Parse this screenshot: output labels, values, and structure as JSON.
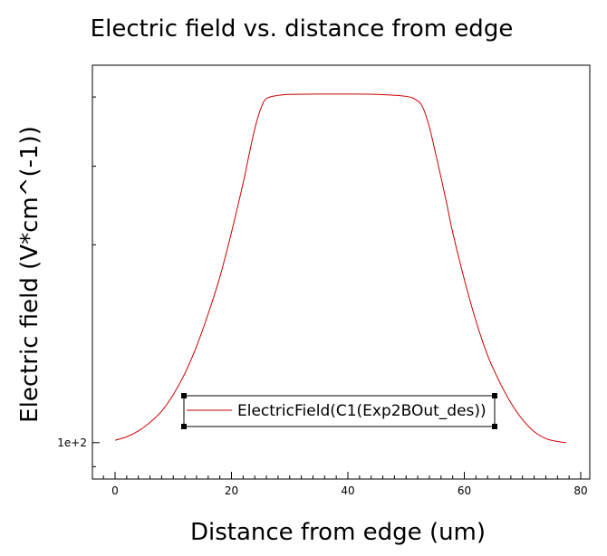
{
  "chart_data": {
    "type": "line",
    "title": "Electric field vs. distance from edge",
    "xlabel": "Distance from edge (um)",
    "ylabel": "Electric field (V*cm^(-1))",
    "xlim": [
      -3.5,
      81.5
    ],
    "x_ticks": [
      0,
      20,
      40,
      60,
      80
    ],
    "x_minor_step": 2,
    "yscale": "log",
    "ylim": [
      94,
      190
    ],
    "y_tick_labels": [
      {
        "value": 100,
        "label": "1e+2"
      }
    ],
    "y_minor_ticks": [
      96,
      140,
      160,
      180
    ],
    "grid": false,
    "legend": {
      "placement": "bottom-center",
      "entries": [
        "ElectricField(C1(Exp2BOut_des))"
      ]
    },
    "series": [
      {
        "name": "ElectricField(C1(Exp2BOut_des))",
        "color": "#cc0000",
        "x": [
          0,
          2,
          4,
          6,
          8,
          10,
          12,
          14,
          16,
          18,
          20,
          22,
          23,
          24,
          25,
          26,
          28,
          30,
          35,
          40,
          45,
          50,
          52,
          53,
          54,
          55,
          56,
          57,
          58,
          60,
          62,
          64,
          66,
          68,
          70,
          72,
          74,
          76,
          77.5
        ],
        "y": [
          100.4,
          101,
          102,
          103.5,
          105.5,
          108.5,
          112.5,
          117.8,
          124.5,
          132.5,
          143,
          155.5,
          163,
          170.5,
          176.3,
          179.5,
          180.5,
          180.8,
          180.9,
          180.9,
          180.8,
          180.2,
          178.8,
          176.3,
          171,
          164,
          157,
          150,
          143,
          132,
          123,
          116,
          111,
          107,
          104,
          101.9,
          100.7,
          100.2,
          100
        ]
      }
    ]
  }
}
